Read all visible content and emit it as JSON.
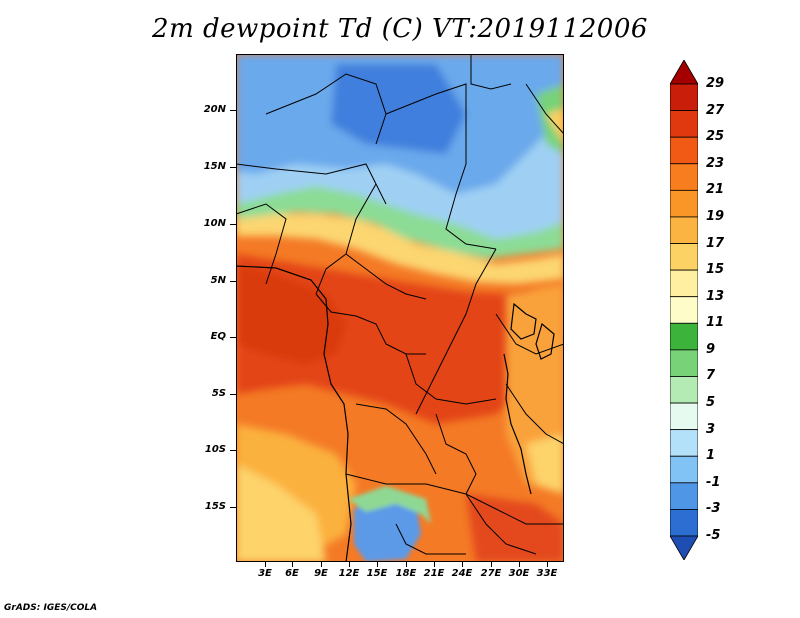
{
  "title": "2m dewpoint Td (C) VT:2019112006",
  "credit": "GrADS: IGES/COLA",
  "map": {
    "region": "Central Africa",
    "y_labels": [
      "20N",
      "15N",
      "10N",
      "5N",
      "EQ",
      "5S",
      "10S",
      "15S"
    ],
    "x_labels": [
      "3E",
      "6E",
      "9E",
      "12E",
      "15E",
      "18E",
      "21E",
      "24E",
      "27E",
      "30E",
      "33E"
    ]
  },
  "colorbar": {
    "labels": [
      "29",
      "27",
      "25",
      "23",
      "21",
      "19",
      "17",
      "15",
      "13",
      "11",
      "9",
      "7",
      "5",
      "3",
      "1",
      "-1",
      "-3",
      "-5"
    ],
    "colors": [
      "#a50000",
      "#c81e0a",
      "#e0390f",
      "#f05a14",
      "#f77d1e",
      "#fa9628",
      "#fbb441",
      "#fdd264",
      "#fef0a0",
      "#fefcc8",
      "#3cb43c",
      "#78d278",
      "#b4ebb4",
      "#e6faf0",
      "#b4e1fa",
      "#82c3f5",
      "#5096e6",
      "#2d6ed2",
      "#1e4eb4"
    ]
  },
  "chart_data": {
    "type": "heatmap",
    "title": "2m dewpoint Td (C) VT:2019112006",
    "variable": "2m dewpoint",
    "units": "C",
    "valid_time": "2019112006",
    "colorbar_levels": [
      -5,
      -3,
      -1,
      1,
      3,
      5,
      7,
      9,
      11,
      13,
      15,
      17,
      19,
      21,
      23,
      25,
      27,
      29
    ],
    "x_ticks": [
      "3E",
      "6E",
      "9E",
      "12E",
      "15E",
      "18E",
      "21E",
      "24E",
      "27E",
      "30E",
      "33E"
    ],
    "y_ticks": [
      "20N",
      "15N",
      "10N",
      "5N",
      "EQ",
      "5S",
      "10S",
      "15S"
    ]
  }
}
